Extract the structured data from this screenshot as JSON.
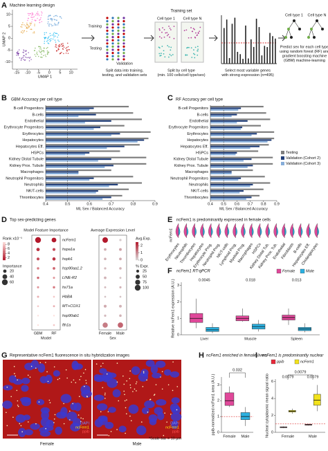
{
  "panel_labels": [
    "A",
    "B",
    "C",
    "D",
    "E",
    "F",
    "G",
    "H",
    "I"
  ],
  "panel_a": {
    "title": "Machine learning design",
    "training_set": "Training set",
    "training": "Training",
    "testing": "Testing",
    "validation": "Validation",
    "cell_type_1": "Cell type 1",
    "cell_type_n": "Cell type N",
    "captions": [
      [
        "Split data into training,",
        "testing, and validation sets"
      ],
      [
        "Split by cell type",
        "(min. 100 cells/cell type/sex)"
      ],
      [
        "Select most variable genes",
        "with strong expression (n=495)"
      ],
      [
        "Predict sex for each cell type",
        "using random forest (RF) and",
        "gradient boosting machine",
        "(GBM) machine-learning"
      ]
    ]
  },
  "panel_d": {
    "title": "Top sex-predicting genes"
  },
  "panel_e": {
    "title": "ncFem1 is predominantly expressed in female cells",
    "y_label": "ncFem1",
    "categories": [
      "Erythrocytes",
      "Neutrophils",
      "Thrombocytes",
      "Hepatocytes",
      "Erythrocyte Prog.",
      "Neutrophil Prog.",
      "NK/T-cells",
      "Lymphoid Prog.",
      "Myeloid Prog.",
      "Macrophages",
      "HSPCs",
      "Kidney Distal Tub.",
      "Kidney Prox. Tub.",
      "Endothelial",
      "Fibroblasts",
      "B-cells",
      "Hepatocytes Eff.",
      "Cholangiocytes"
    ]
  },
  "panel_g": {
    "title": "Representative ncFem1 fluorescence in situ hybridization images",
    "female": "Female",
    "male": "Male",
    "scale": "*Scale bar = 10 µm",
    "channels": [
      "DAPI",
      "ncFem1",
      "ppib"
    ]
  },
  "chart_data": [
    {
      "type": "scatter",
      "x_label": "UMAP 1",
      "y_label": "UMAP 2",
      "xlim": [
        -17,
        13
      ],
      "ylim": [
        -13,
        12
      ],
      "xticks": [
        -15,
        -10,
        -5,
        0,
        5,
        10
      ],
      "yticks": [
        -10,
        -5,
        0,
        5,
        10
      ]
    },
    {
      "type": "hbar",
      "title": "GBM Accuracy per cell type",
      "x_label": "ML Sex / Balanced Accuracy",
      "xlim": [
        0.4,
        0.9
      ],
      "xticks": [
        0.4,
        0.5,
        0.6,
        0.7,
        0.8,
        0.9
      ],
      "ref_line": 0.5,
      "legend": false,
      "categories": [
        "B-cell Progenitors",
        "B-cells",
        "Endothelial",
        "Erythrocyte Progenitors",
        "Erythrocytes",
        "Hepatocytes",
        "Hepatocytes Eff.",
        "HSPCs",
        "Kidney Distal Tubule",
        "Kidney Prox. Tubule",
        "Macrophages",
        "Neutrophil Progenitors",
        "Neutrophils",
        "NK/T-cells",
        "Thrombocytes"
      ],
      "series": [
        {
          "name": "Testing",
          "color": "#7f7f7f",
          "values": [
            0.78,
            0.8,
            0.84,
            0.76,
            0.88,
            0.87,
            0.83,
            0.74,
            0.86,
            0.86,
            0.7,
            0.8,
            0.84,
            0.78,
            0.75
          ]
        },
        {
          "name": "Validation (Cohort 2)",
          "color": "#23407a",
          "values": [
            0.62,
            0.63,
            0.7,
            0.65,
            0.74,
            0.85,
            0.76,
            0.6,
            0.7,
            0.71,
            0.55,
            0.62,
            0.73,
            0.64,
            0.7
          ]
        },
        {
          "name": "Validation (Cohort 3)",
          "color": "#86add9",
          "values": [
            0.6,
            0.55,
            0.58,
            0.62,
            0.7,
            0.82,
            0.68,
            0.58,
            0.64,
            0.67,
            0.55,
            0.6,
            0.69,
            0.63,
            0.66
          ]
        }
      ]
    },
    {
      "type": "hbar",
      "title": "RF Accuracy per cell type",
      "x_label": "ML Sex / Balanced Accuracy",
      "xlim": [
        0.4,
        0.9
      ],
      "xticks": [
        0.4,
        0.5,
        0.6,
        0.7,
        0.8,
        0.9
      ],
      "ref_line": 0.5,
      "legend": true,
      "categories": [
        "B-cell Progenitors",
        "B-cells",
        "Endothelial",
        "Erythrocyte Progenitors",
        "Erythrocytes",
        "Hepatocytes",
        "Hepatocytes Eff.",
        "HSPCs",
        "Kidney Distal Tubule",
        "Kidney Prox. Tubule",
        "Macrophages",
        "Neutrophil Progenitors",
        "Neutrophils",
        "NK/T-cells",
        "Thrombocytes"
      ],
      "series": [
        {
          "name": "Testing",
          "color": "#7f7f7f",
          "values": [
            0.8,
            0.82,
            0.85,
            0.78,
            0.88,
            0.88,
            0.84,
            0.76,
            0.87,
            0.87,
            0.72,
            0.81,
            0.85,
            0.8,
            0.77
          ]
        },
        {
          "name": "Validation (Cohort 2)",
          "color": "#23407a",
          "values": [
            0.63,
            0.6,
            0.68,
            0.64,
            0.75,
            0.86,
            0.77,
            0.6,
            0.71,
            0.72,
            0.56,
            0.63,
            0.72,
            0.65,
            0.71
          ]
        },
        {
          "name": "Validation (Cohort 3)",
          "color": "#86add9",
          "values": [
            0.61,
            0.56,
            0.6,
            0.63,
            0.71,
            0.83,
            0.7,
            0.59,
            0.65,
            0.68,
            0.56,
            0.61,
            0.7,
            0.62,
            0.67
          ]
        }
      ]
    },
    {
      "type": "dot",
      "title": "Model Feature Importance",
      "x_label": "Model",
      "categories": [
        "ncFem1",
        "hspa1a",
        "hspb1",
        "hsp90aa1.2",
        "LINE-R2",
        "hs71a",
        "HbBA",
        "MT+COX1",
        "hsp90ab1",
        "fth1a"
      ],
      "color_title": "Rank x10⁻¹",
      "clim": [
        1,
        9
      ],
      "cticks": [
        2,
        4,
        6,
        8
      ],
      "cmap": [
        "#b2182b",
        "#fde0dd"
      ],
      "size_title": "Importance",
      "slim": [
        0,
        60
      ],
      "sticks": [
        20,
        40,
        60
      ],
      "series": [
        {
          "name": "GBM",
          "color_values": [
            1,
            2,
            3,
            5,
            4,
            6,
            7,
            8,
            9,
            9
          ],
          "size_values": [
            60,
            20,
            15,
            10,
            10,
            8,
            8,
            6,
            5,
            5
          ]
        },
        {
          "name": "RF",
          "color_values": [
            1,
            3,
            2,
            4,
            6,
            5,
            8,
            7,
            9,
            8
          ],
          "size_values": [
            40,
            15,
            18,
            12,
            8,
            10,
            6,
            7,
            5,
            6
          ]
        }
      ]
    },
    {
      "type": "dot",
      "title": "Average Expression Level",
      "x_label": "Sex",
      "color_title": "Avg.Exp.",
      "clim": [
        0,
        2.5
      ],
      "cticks": [
        0,
        1,
        2
      ],
      "cmap": [
        "#d9d9d9",
        "#b2182b"
      ],
      "size_title": "% Expr.",
      "slim": [
        0,
        100
      ],
      "sticks": [
        25,
        50,
        75,
        100
      ],
      "series": [
        {
          "name": "Female",
          "color_values": [
            2.5,
            0.6,
            0.5,
            0.4,
            0.5,
            0.4,
            0.3,
            0.6,
            0.4,
            1.2
          ],
          "size_values": [
            90,
            20,
            18,
            15,
            20,
            12,
            10,
            25,
            15,
            80
          ]
        },
        {
          "name": "Male",
          "color_values": [
            0.2,
            0.7,
            0.6,
            0.5,
            0.3,
            0.5,
            0.3,
            0.5,
            0.5,
            1.5
          ],
          "size_values": [
            15,
            22,
            20,
            18,
            12,
            14,
            10,
            22,
            18,
            85
          ]
        }
      ]
    },
    {
      "type": "box",
      "title": "ncFem1 RT-qPCR",
      "y_label": "Relative ncFem1 expression (A.U.)",
      "ylim": [
        0,
        3.2
      ],
      "yticks": [
        0,
        1,
        2,
        3
      ],
      "legend": true,
      "categories": [
        "Liver",
        "Muscle",
        "Spleen"
      ],
      "p_values": [
        0.0045,
        0.018,
        0.013
      ],
      "series": [
        {
          "name": "Female",
          "color": "#e0489a",
          "min": [
            0.4,
            0.8,
            0.6
          ],
          "q1": [
            0.75,
            0.85,
            0.9
          ],
          "median": [
            1.0,
            1.0,
            1.05
          ],
          "q3": [
            1.3,
            1.15,
            1.2
          ],
          "max": [
            2.2,
            1.6,
            1.6
          ]
        },
        {
          "name": "Male",
          "color": "#2bb0e0",
          "min": [
            0.1,
            0.2,
            0.15
          ],
          "q1": [
            0.2,
            0.35,
            0.25
          ],
          "median": [
            0.3,
            0.5,
            0.35
          ],
          "q3": [
            0.45,
            0.65,
            0.45
          ],
          "max": [
            0.7,
            0.9,
            0.7
          ]
        }
      ]
    },
    {
      "type": "box",
      "title": "ncFem1 enriched in female livers",
      "y_label": "ppib-normalized ncFem1 area (A.U.)",
      "ylim": [
        0,
        3.5
      ],
      "yticks": [
        0,
        1,
        2,
        3
      ],
      "ref_line": 1,
      "legend": false,
      "categories": [
        "Female",
        "Male"
      ],
      "p_top": 0.032,
      "series": [
        {
          "colors": [
            "#e0489a",
            "#2bb0e0"
          ],
          "min": [
            1.6,
            0.4
          ],
          "q1": [
            1.7,
            0.8
          ],
          "median": [
            2.0,
            1.0
          ],
          "q3": [
            2.5,
            1.25
          ],
          "max": [
            2.9,
            1.6
          ]
        }
      ]
    },
    {
      "type": "box",
      "title": "ncFem1 is predominantly nuclear",
      "y_label": "Nuclear:cytoplasmic mean signal ratio",
      "ylim": [
        0,
        6.3
      ],
      "yticks": [
        0,
        2,
        4,
        6
      ],
      "ref_line": 1,
      "legend": true,
      "categories": [
        "Female",
        "Male"
      ],
      "p_values": [
        0.0079,
        0.0079
      ],
      "p_top": 0.0079,
      "series": [
        {
          "name": "ppib",
          "color": "#e8283a",
          "min": [
            0.5,
            0.8
          ],
          "q1": [
            0.55,
            0.85
          ],
          "median": [
            0.6,
            0.9
          ],
          "q3": [
            0.65,
            0.95
          ],
          "max": [
            0.7,
            1.0
          ]
        },
        {
          "name": "ncFem1",
          "color": "#f2e21c",
          "min": [
            2.2,
            2.5
          ],
          "q1": [
            2.4,
            3.2
          ],
          "median": [
            2.5,
            3.8
          ],
          "q3": [
            2.6,
            4.5
          ],
          "max": [
            2.8,
            5.6
          ]
        }
      ]
    }
  ]
}
